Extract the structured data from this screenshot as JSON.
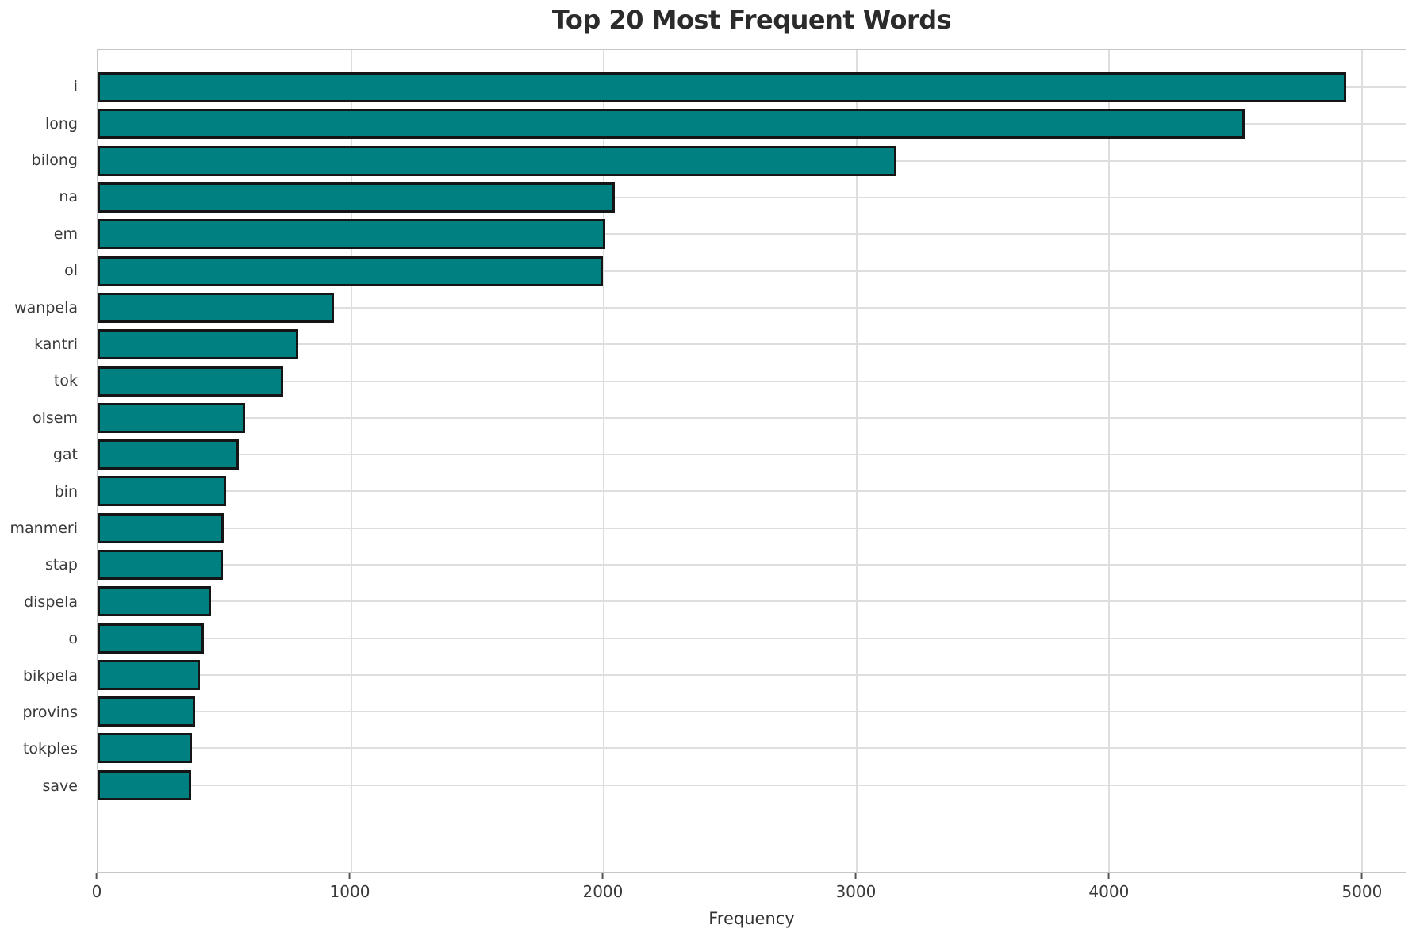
{
  "chart_data": {
    "type": "bar",
    "orientation": "horizontal",
    "title": "Top 20 Most Frequent Words",
    "xlabel": "Frequency",
    "ylabel": "",
    "categories": [
      "i",
      "long",
      "bilong",
      "na",
      "em",
      "ol",
      "wanpela",
      "kantri",
      "tok",
      "olsem",
      "gat",
      "bin",
      "manmeri",
      "stap",
      "dispela",
      "o",
      "bikpela",
      "provins",
      "tokples",
      "save"
    ],
    "values": [
      4940,
      4540,
      3160,
      2045,
      2010,
      2000,
      935,
      795,
      735,
      585,
      560,
      510,
      500,
      495,
      450,
      420,
      405,
      385,
      375,
      370
    ],
    "x_ticks": [
      0,
      1000,
      2000,
      3000,
      4000,
      5000
    ],
    "xlim": [
      0,
      5176
    ],
    "grid": true,
    "legend_position": "none",
    "bar_color": "#008080",
    "bar_edge_color": "#151515",
    "grid_color": "#dedede",
    "background": "#ffffff"
  }
}
